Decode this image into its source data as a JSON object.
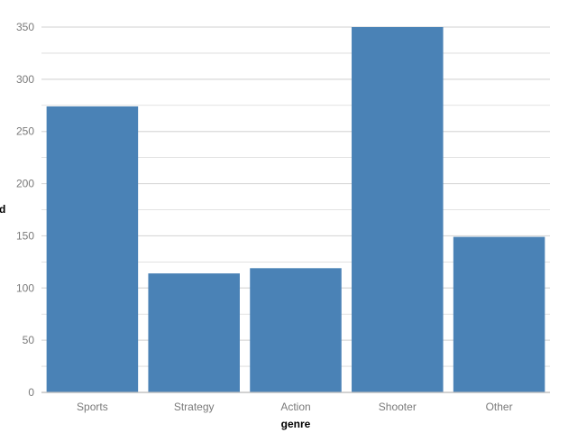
{
  "chart_data": {
    "type": "bar",
    "categories": [
      "Sports",
      "Strategy",
      "Action",
      "Shooter",
      "Other"
    ],
    "values": [
      274,
      114,
      119,
      350,
      149
    ],
    "xlabel": "genre",
    "ylabel": "d",
    "ylim": [
      0,
      350
    ],
    "yticks": [
      0,
      50,
      100,
      150,
      200,
      250,
      300,
      350
    ],
    "grid": true,
    "bar_color": "#4a82b6",
    "grid_color": "#d9d9d9",
    "tick_label_color": "#7a7a7a"
  }
}
